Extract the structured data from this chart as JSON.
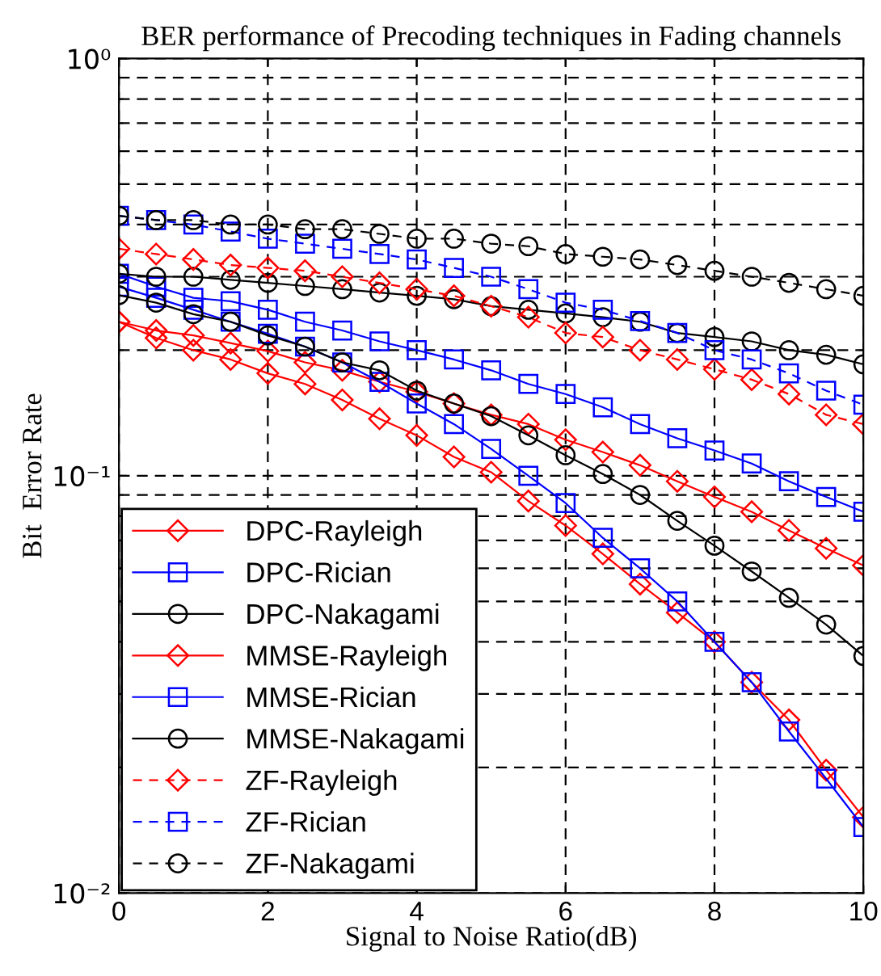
{
  "chart_data": {
    "type": "line",
    "title": "BER performance of Precoding techniques in Fading channels",
    "xlabel": "Signal to Noise Ratio(dB)",
    "ylabel": "Bit  Error Rate",
    "log": "y",
    "grid": true,
    "legend": "bottom left",
    "x": [
      0,
      0.5,
      1,
      1.5,
      2,
      2.5,
      3,
      3.5,
      4,
      4.5,
      5,
      5.5,
      6,
      6.5,
      7,
      7.5,
      8,
      8.5,
      9,
      9.5,
      10
    ],
    "xlim": [
      0,
      10
    ],
    "xticks": [
      0,
      2,
      4,
      6,
      8,
      10
    ],
    "ylim": [
      0.01,
      1
    ],
    "yticks": [
      {
        "value": 0.01,
        "label": "10⁻²"
      },
      {
        "value": 0.1,
        "label": "10⁻¹"
      },
      {
        "value": 1,
        "label": "10⁰"
      }
    ],
    "series": [
      {
        "name": "DPC-Rayleigh",
        "color": "#ff0000",
        "marker": "diamond",
        "line_style": "solid",
        "values": [
          0.234,
          0.223,
          0.217,
          0.208,
          0.199,
          0.187,
          0.179,
          0.168,
          0.159,
          0.149,
          0.14,
          0.133,
          0.122,
          0.114,
          0.106,
          0.097,
          0.089,
          0.082,
          0.074,
          0.067,
          0.061
        ]
      },
      {
        "name": "DPC-Rician",
        "color": "#0000ff",
        "marker": "square",
        "line_style": "solid",
        "values": [
          0.305,
          0.284,
          0.267,
          0.262,
          0.25,
          0.234,
          0.223,
          0.21,
          0.2,
          0.19,
          0.179,
          0.166,
          0.157,
          0.146,
          0.133,
          0.123,
          0.115,
          0.107,
          0.097,
          0.089,
          0.082
        ]
      },
      {
        "name": "DPC-Nakagami",
        "color": "#000000",
        "marker": "circle",
        "line_style": "solid",
        "values": [
          0.305,
          0.3,
          0.3,
          0.295,
          0.29,
          0.285,
          0.28,
          0.275,
          0.27,
          0.265,
          0.255,
          0.25,
          0.245,
          0.24,
          0.234,
          0.22,
          0.215,
          0.21,
          0.2,
          0.195,
          0.185
        ]
      },
      {
        "name": "MMSE-Rayleigh",
        "color": "#ff0000",
        "marker": "diamond",
        "line_style": "solid",
        "values": [
          0.234,
          0.214,
          0.2,
          0.19,
          0.176,
          0.166,
          0.152,
          0.137,
          0.125,
          0.111,
          0.102,
          0.087,
          0.076,
          0.065,
          0.055,
          0.047,
          0.04,
          0.032,
          0.026,
          0.0197,
          0.0152
        ]
      },
      {
        "name": "MMSE-Rician",
        "color": "#0000ff",
        "marker": "square",
        "line_style": "solid",
        "values": [
          0.284,
          0.267,
          0.25,
          0.234,
          0.219,
          0.204,
          0.187,
          0.168,
          0.149,
          0.133,
          0.116,
          0.1,
          0.086,
          0.071,
          0.06,
          0.05,
          0.04,
          0.032,
          0.0244,
          0.0188,
          0.0144
        ]
      },
      {
        "name": "MMSE-Nakagami",
        "color": "#000000",
        "marker": "circle",
        "line_style": "solid",
        "values": [
          0.271,
          0.26,
          0.244,
          0.234,
          0.217,
          0.204,
          0.187,
          0.179,
          0.16,
          0.149,
          0.139,
          0.125,
          0.112,
          0.101,
          0.09,
          0.078,
          0.068,
          0.059,
          0.051,
          0.044,
          0.037
        ]
      },
      {
        "name": "ZF-Rayleigh",
        "color": "#ff0000",
        "marker": "diamond",
        "line_style": "dashed",
        "values": [
          0.35,
          0.34,
          0.33,
          0.32,
          0.315,
          0.31,
          0.3,
          0.29,
          0.28,
          0.27,
          0.255,
          0.24,
          0.22,
          0.215,
          0.2,
          0.19,
          0.18,
          0.17,
          0.157,
          0.14,
          0.133
        ]
      },
      {
        "name": "ZF-Rician",
        "color": "#0000ff",
        "marker": "square",
        "line_style": "dashed",
        "values": [
          0.42,
          0.41,
          0.4,
          0.385,
          0.37,
          0.36,
          0.35,
          0.34,
          0.33,
          0.315,
          0.3,
          0.28,
          0.26,
          0.25,
          0.235,
          0.22,
          0.2,
          0.19,
          0.176,
          0.16,
          0.148
        ]
      },
      {
        "name": "ZF-Nakagami",
        "color": "#000000",
        "marker": "circle",
        "line_style": "dashed",
        "values": [
          0.42,
          0.41,
          0.41,
          0.4,
          0.4,
          0.39,
          0.39,
          0.38,
          0.37,
          0.37,
          0.36,
          0.355,
          0.34,
          0.335,
          0.33,
          0.32,
          0.31,
          0.3,
          0.29,
          0.28,
          0.27
        ]
      }
    ]
  }
}
